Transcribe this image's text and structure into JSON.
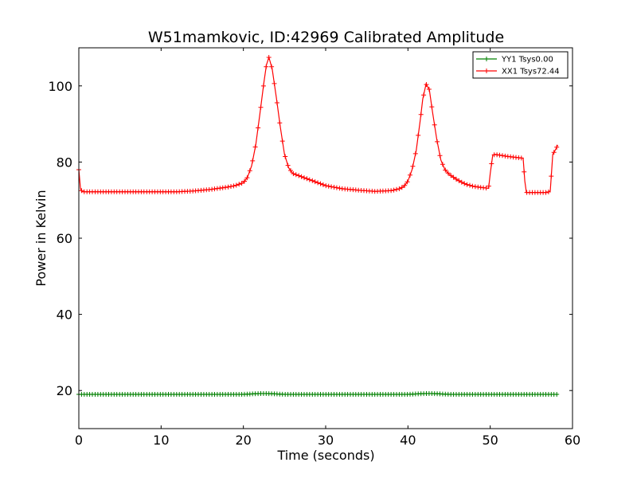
{
  "chart_data": {
    "type": "line",
    "title": "W51mamkovic, ID:42969 Calibrated Amplitude",
    "xlabel": "Time (seconds)",
    "ylabel": "Power in Kelvin",
    "xlim": [
      0,
      60
    ],
    "ylim": [
      10,
      110
    ],
    "xticks": [
      0,
      10,
      20,
      30,
      40,
      50,
      60
    ],
    "yticks": [
      20,
      40,
      60,
      80,
      100
    ],
    "grid": false,
    "legend_position": "top-right",
    "marker": "+",
    "series": [
      {
        "name": "YY1 Tsys0.00",
        "color": "#008000",
        "x": [
          0,
          5,
          10,
          15,
          20,
          21,
          22,
          23,
          24,
          25,
          30,
          35,
          40,
          41,
          42,
          43,
          44,
          45,
          50,
          55,
          58.2
        ],
        "y": [
          19,
          19,
          19,
          19,
          19,
          19.1,
          19.2,
          19.2,
          19.1,
          19,
          19,
          19,
          19,
          19.1,
          19.2,
          19.2,
          19.1,
          19,
          19,
          19,
          19
        ]
      },
      {
        "name": "XX1 Tsys72.44",
        "color": "#ff0000",
        "x": [
          0,
          0.2,
          0.4,
          1,
          5,
          10,
          12,
          14,
          16,
          18,
          19,
          20,
          20.5,
          21,
          21.5,
          22,
          22.5,
          22.8,
          23.1,
          23.5,
          24,
          24.5,
          25,
          25.5,
          26,
          27,
          28,
          29,
          30,
          32,
          34,
          36,
          38,
          39,
          39.5,
          40,
          40.5,
          41,
          41.5,
          41.8,
          42.2,
          42.6,
          43,
          43.5,
          44,
          44.5,
          45,
          46,
          47,
          48,
          49,
          49.8,
          50,
          50.3,
          50.6,
          52,
          54,
          54.2,
          54.4,
          56,
          57,
          57.3,
          57.6,
          58,
          58.2
        ],
        "y": [
          78,
          73,
          72.2,
          72.2,
          72.2,
          72.2,
          72.2,
          72.4,
          72.8,
          73.4,
          73.8,
          74.6,
          76,
          79,
          84.5,
          92.5,
          101,
          105.5,
          107.5,
          104.5,
          97,
          89,
          82,
          78.5,
          77,
          76.2,
          75.4,
          74.6,
          73.8,
          73,
          72.6,
          72.3,
          72.5,
          73,
          73.6,
          75,
          78,
          83,
          91,
          96.5,
          100.5,
          99,
          93,
          86,
          80.5,
          78,
          76.8,
          75.3,
          74.2,
          73.6,
          73.3,
          73.1,
          77,
          81.8,
          82,
          81.5,
          81,
          75,
          72,
          72,
          72,
          72.5,
          82,
          83.5,
          84.5
        ]
      }
    ]
  }
}
